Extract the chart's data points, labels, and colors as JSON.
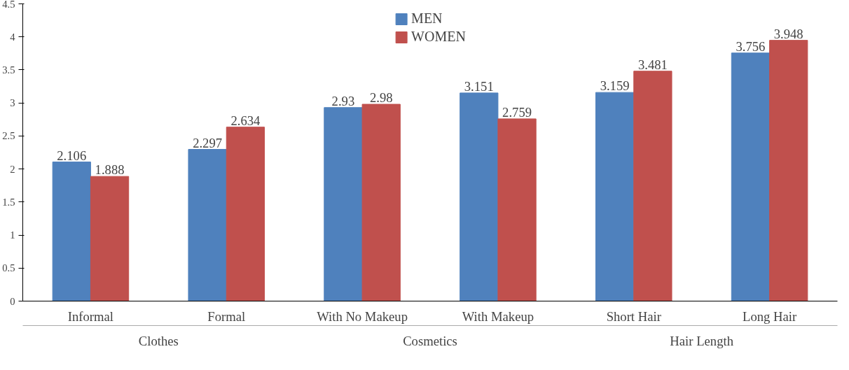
{
  "chart_data": {
    "type": "bar",
    "categories": [
      "Informal",
      "Formal",
      "With No Makeup",
      "With Makeup",
      "Short Hair",
      "Long Hair"
    ],
    "series": [
      {
        "name": "MEN",
        "color": "#4f81bd",
        "values": [
          2.106,
          2.297,
          2.93,
          3.151,
          3.159,
          3.756
        ]
      },
      {
        "name": "WOMEN",
        "color": "#c0504d",
        "values": [
          1.888,
          2.634,
          2.98,
          2.759,
          3.481,
          3.948
        ]
      }
    ],
    "annotations": [
      "Clothes",
      "Cosmetics",
      "Hair Length"
    ],
    "ylim": [
      0,
      4.5
    ],
    "yticks": [
      0,
      0.5,
      1,
      1.5,
      2,
      2.5,
      3,
      3.5,
      4,
      4.5
    ],
    "data_labels": true,
    "grid": false,
    "legend": "top"
  }
}
